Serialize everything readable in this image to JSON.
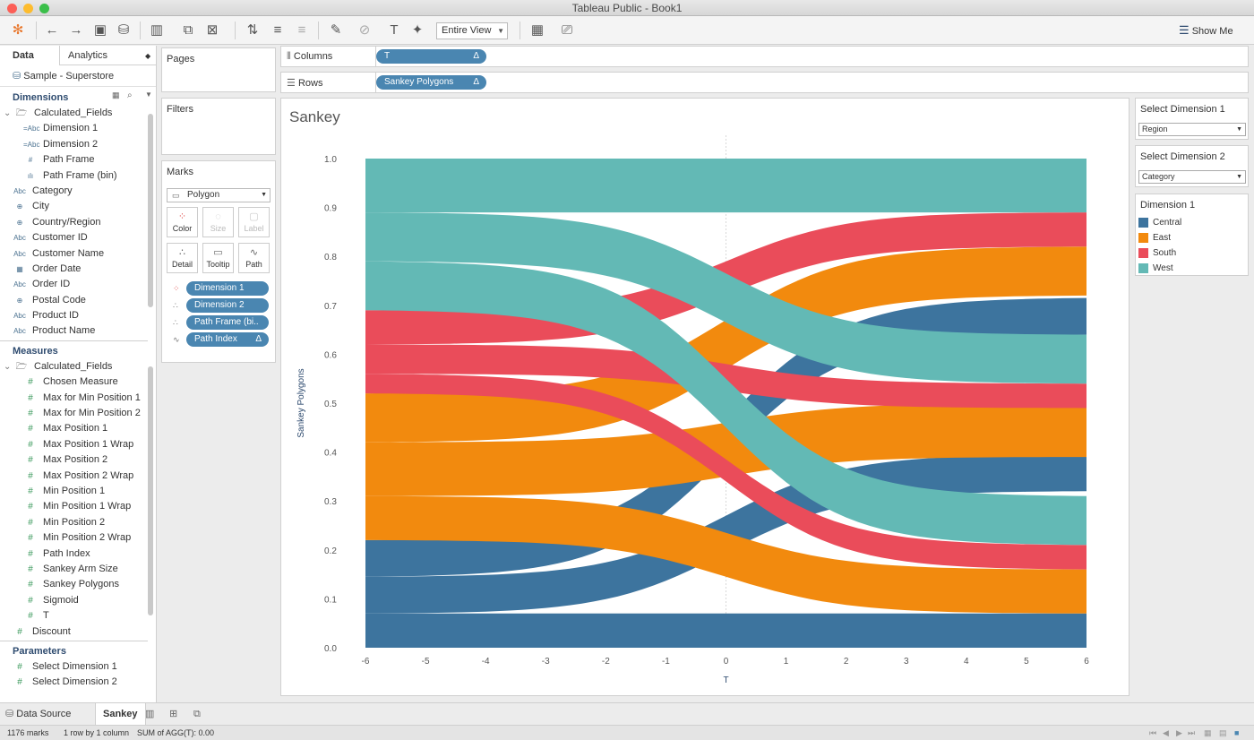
{
  "window": {
    "title": "Tableau Public - Book1"
  },
  "toolbar": {
    "fit_select": "Entire View",
    "show_me": "Show Me"
  },
  "data_pane": {
    "tabs": [
      "Data",
      "Analytics"
    ],
    "source": "Sample - Superstore",
    "dimensions_header": "Dimensions",
    "dimensions": [
      {
        "label": "Calculated_Fields",
        "icon": "folder-icon",
        "indent": 1
      },
      {
        "label": "Dimension 1",
        "icon": "string-calc-icon",
        "indent": 2
      },
      {
        "label": "Dimension 2",
        "icon": "string-calc-icon",
        "indent": 2
      },
      {
        "label": "Path Frame",
        "icon": "number-icon",
        "indent": 2
      },
      {
        "label": "Path Frame (bin)",
        "icon": "bin-icon",
        "indent": 2
      },
      {
        "label": "Category",
        "icon": "string-icon",
        "indent": 1
      },
      {
        "label": "City",
        "icon": "globe-icon",
        "indent": 1
      },
      {
        "label": "Country/Region",
        "icon": "globe-icon",
        "indent": 1
      },
      {
        "label": "Customer ID",
        "icon": "string-icon",
        "indent": 1
      },
      {
        "label": "Customer Name",
        "icon": "string-icon",
        "indent": 1
      },
      {
        "label": "Order Date",
        "icon": "date-icon",
        "indent": 1
      },
      {
        "label": "Order ID",
        "icon": "string-icon",
        "indent": 1
      },
      {
        "label": "Postal Code",
        "icon": "globe-icon",
        "indent": 1
      },
      {
        "label": "Product ID",
        "icon": "string-icon",
        "indent": 1
      },
      {
        "label": "Product Name",
        "icon": "string-icon",
        "indent": 1
      }
    ],
    "measures_header": "Measures",
    "measures": [
      {
        "label": "Calculated_Fields",
        "icon": "folder-icon",
        "indent": 1
      },
      {
        "label": "Chosen Measure",
        "icon": "number-icon",
        "indent": 2
      },
      {
        "label": "Max for Min Position 1",
        "icon": "number-icon",
        "indent": 2
      },
      {
        "label": "Max for Min Position 2",
        "icon": "number-icon",
        "indent": 2
      },
      {
        "label": "Max Position 1",
        "icon": "number-icon",
        "indent": 2
      },
      {
        "label": "Max Position 1 Wrap",
        "icon": "number-icon",
        "indent": 2
      },
      {
        "label": "Max Position 2",
        "icon": "number-icon",
        "indent": 2
      },
      {
        "label": "Max Position 2 Wrap",
        "icon": "number-icon",
        "indent": 2
      },
      {
        "label": "Min Position 1",
        "icon": "number-icon",
        "indent": 2
      },
      {
        "label": "Min Position 1 Wrap",
        "icon": "number-icon",
        "indent": 2
      },
      {
        "label": "Min Position 2",
        "icon": "number-icon",
        "indent": 2
      },
      {
        "label": "Min Position 2 Wrap",
        "icon": "number-icon",
        "indent": 2
      },
      {
        "label": "Path Index",
        "icon": "number-icon",
        "indent": 2
      },
      {
        "label": "Sankey Arm Size",
        "icon": "number-icon",
        "indent": 2
      },
      {
        "label": "Sankey Polygons",
        "icon": "number-icon",
        "indent": 2
      },
      {
        "label": "Sigmoid",
        "icon": "number-icon",
        "indent": 2
      },
      {
        "label": "T",
        "icon": "number-icon",
        "indent": 2
      },
      {
        "label": "Discount",
        "icon": "number-icon",
        "indent": 1
      }
    ],
    "parameters_header": "Parameters",
    "parameters": [
      {
        "label": "Select Dimension 1",
        "icon": "number-icon",
        "indent": 1
      },
      {
        "label": "Select Dimension 2",
        "icon": "number-icon",
        "indent": 1
      }
    ]
  },
  "cards": {
    "pages": "Pages",
    "filters": "Filters",
    "marks": "Marks",
    "mark_type": "Polygon",
    "mark_buttons": [
      "Color",
      "Size",
      "Label",
      "Detail",
      "Tooltip",
      "Path"
    ],
    "mark_pills": [
      "Dimension 1",
      "Dimension 2",
      "Path Frame (bi..",
      "Path Index"
    ],
    "delta_symbol": "Δ"
  },
  "shelves": {
    "columns_label": "Columns",
    "columns_pill": "T",
    "rows_label": "Rows",
    "rows_pill": "Sankey Polygons"
  },
  "parameters_panel": [
    {
      "title": "Select Dimension 1",
      "value": "Region"
    },
    {
      "title": "Select Dimension 2",
      "value": "Category"
    }
  ],
  "legend": {
    "title": "Dimension 1",
    "items": [
      {
        "label": "Central",
        "color": "#3d749e"
      },
      {
        "label": "East",
        "color": "#f28a0e"
      },
      {
        "label": "South",
        "color": "#ea4c5a"
      },
      {
        "label": "West",
        "color": "#63b9b5"
      }
    ]
  },
  "sheet_tabs": {
    "data_source": "Data Source",
    "active": "Sankey"
  },
  "status": {
    "marks": "1176 marks",
    "dims": "1 row by 1 column",
    "sum": "SUM of AGG(T): 0.00"
  },
  "chart_data": {
    "type": "area",
    "title": "Sankey",
    "xlabel": "T",
    "ylabel": "Sankey Polygons",
    "xlim": [
      -6,
      6
    ],
    "ylim": [
      0,
      1
    ],
    "x_ticks": [
      -6,
      -5,
      -4,
      -3,
      -2,
      -1,
      0,
      1,
      2,
      3,
      4,
      5,
      6
    ],
    "y_ticks": [
      0.0,
      0.1,
      0.2,
      0.3,
      0.4,
      0.5,
      0.6,
      0.7,
      0.8,
      0.9,
      1.0
    ],
    "grid": "vertical zero line",
    "series": [
      {
        "name": "Central",
        "color": "#3d749e",
        "y0_left": 0.0,
        "y1_left": 0.07,
        "y0_right": 0.0,
        "y1_right": 0.07
      },
      {
        "name": "Central",
        "color": "#3d749e",
        "y0_left": 0.07,
        "y1_left": 0.145,
        "y0_right": 0.32,
        "y1_right": 0.395
      },
      {
        "name": "Central",
        "color": "#3d749e",
        "y0_left": 0.145,
        "y1_left": 0.22,
        "y0_right": 0.64,
        "y1_right": 0.715
      },
      {
        "name": "East",
        "color": "#f28a0e",
        "y0_left": 0.22,
        "y1_left": 0.31,
        "y0_right": 0.07,
        "y1_right": 0.16
      },
      {
        "name": "East",
        "color": "#f28a0e",
        "y0_left": 0.31,
        "y1_left": 0.42,
        "y0_right": 0.39,
        "y1_right": 0.5
      },
      {
        "name": "East",
        "color": "#f28a0e",
        "y0_left": 0.42,
        "y1_left": 0.52,
        "y0_right": 0.72,
        "y1_right": 0.82
      },
      {
        "name": "South",
        "color": "#ea4c5a",
        "y0_left": 0.52,
        "y1_left": 0.56,
        "y0_right": 0.16,
        "y1_right": 0.21
      },
      {
        "name": "South",
        "color": "#ea4c5a",
        "y0_left": 0.56,
        "y1_left": 0.62,
        "y0_right": 0.49,
        "y1_right": 0.54
      },
      {
        "name": "South",
        "color": "#ea4c5a",
        "y0_left": 0.62,
        "y1_left": 0.69,
        "y0_right": 0.82,
        "y1_right": 0.89
      },
      {
        "name": "West",
        "color": "#63b9b5",
        "y0_left": 0.69,
        "y1_left": 0.79,
        "y0_right": 0.21,
        "y1_right": 0.31
      },
      {
        "name": "West",
        "color": "#63b9b5",
        "y0_left": 0.79,
        "y1_left": 0.89,
        "y0_right": 0.54,
        "y1_right": 0.64
      },
      {
        "name": "West",
        "color": "#63b9b5",
        "y0_left": 0.89,
        "y1_left": 1.0,
        "y0_right": 0.89,
        "y1_right": 1.0
      }
    ]
  }
}
